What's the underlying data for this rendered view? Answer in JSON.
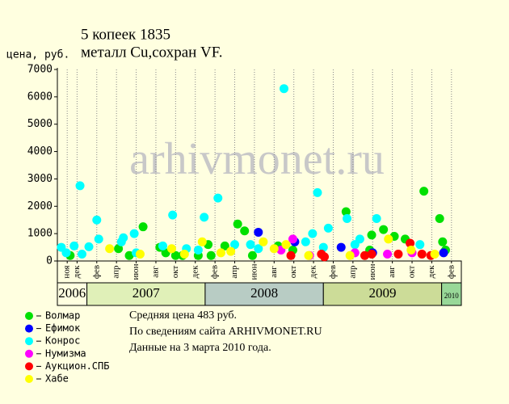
{
  "chart_data": {
    "type": "scatter",
    "title": "5 копеек 1835",
    "subtitle": "металл Cu,сохран VF.",
    "y_label": "цена, руб.",
    "watermark": "arhivmonet.ru",
    "ylim": [
      0,
      7000
    ],
    "yticks": [
      0,
      1000,
      2000,
      3000,
      4000,
      5000,
      6000,
      7000
    ],
    "xlim": [
      0,
      41
    ],
    "categories": [
      null,
      "ноя",
      "дек",
      null,
      "фев",
      null,
      "апр",
      null,
      "июн",
      null,
      "авг",
      null,
      "окт",
      null,
      "дек",
      null,
      "фев",
      null,
      "апр",
      null,
      "июн",
      null,
      "авг",
      null,
      "окт",
      null,
      "дек",
      null,
      "фев",
      null,
      "апр",
      null,
      "июн",
      null,
      "авг",
      null,
      "окт",
      null,
      "дек",
      null,
      "фев"
    ],
    "category_years": [
      "2006",
      "2006",
      "2006",
      "2007",
      "2007",
      "2007",
      "2007",
      "2007",
      "2007",
      "2007",
      "2007",
      "2007",
      "2007",
      "2007",
      "2007",
      "2008",
      "2008",
      "2008",
      "2008",
      "2008",
      "2008",
      "2008",
      "2008",
      "2008",
      "2008",
      "2008",
      "2008",
      "2009",
      "2009",
      "2009",
      "2009",
      "2009",
      "2009",
      "2009",
      "2009",
      "2009",
      "2009",
      "2009",
      "2009",
      "2010",
      "2010"
    ],
    "year_colors": {
      "2006": "#ffffe0",
      "2007": "#e0f0b8",
      "2008": "#b8ccc4",
      "2009": "#ccdc98",
      "2010": "#98d898"
    },
    "series": [
      {
        "name": "Волмар",
        "color": "#00e000",
        "x": [
          1.3,
          6.2,
          7.3,
          8.7,
          10.4,
          11.0,
          12.0,
          12.7,
          14.3,
          15.3,
          15.6,
          17.0,
          18.3,
          19.0,
          19.8,
          22.4,
          23.9,
          29.3,
          31.7,
          31.9,
          33.1,
          34.2,
          35.3,
          37.2,
          38.8,
          39.1,
          39.4
        ],
        "values": [
          200,
          450,
          200,
          1250,
          500,
          300,
          200,
          200,
          200,
          600,
          200,
          550,
          1350,
          1100,
          200,
          550,
          400,
          1800,
          400,
          950,
          1150,
          900,
          800,
          2550,
          1550,
          700,
          400
        ]
      },
      {
        "name": "Ефимок",
        "color": "#0000ff",
        "x": [
          20.4,
          24.1,
          28.8,
          32.0,
          39.2
        ],
        "values": [
          1050,
          700,
          500,
          300,
          300
        ]
      },
      {
        "name": "Конрос",
        "color": "#00ffff",
        "x": [
          0.4,
          0.9,
          1.7,
          2.3,
          2.5,
          3.2,
          4.0,
          4.2,
          6.5,
          6.7,
          7.8,
          8.0,
          10.7,
          11.7,
          13.1,
          14.3,
          14.9,
          16.3,
          18.0,
          19.6,
          20.4,
          23.0,
          25.2,
          25.9,
          26.4,
          27.0,
          27.5,
          29.4,
          30.2,
          30.7,
          32.4,
          36.8
        ],
        "values": [
          500,
          300,
          550,
          2750,
          250,
          520,
          1500,
          800,
          700,
          850,
          1000,
          300,
          550,
          1680,
          450,
          400,
          1600,
          2300,
          600,
          600,
          450,
          6300,
          700,
          1000,
          2500,
          500,
          1200,
          1550,
          600,
          800,
          1550,
          600
        ]
      },
      {
        "name": "Нумизма",
        "color": "#ff00ff",
        "x": [
          22.7,
          23.9,
          25.6,
          30.2,
          33.5,
          36.0
        ],
        "values": [
          400,
          800,
          200,
          300,
          250,
          300
        ]
      },
      {
        "name": "Аукцион.СПБ",
        "color": "#ff0000",
        "x": [
          23.7,
          26.8,
          27.1,
          31.2,
          31.9,
          34.6,
          35.8,
          37.0,
          37.9
        ],
        "values": [
          200,
          250,
          150,
          200,
          250,
          250,
          650,
          250,
          200
        ]
      },
      {
        "name": "Хабе",
        "color": "#ffff00",
        "x": [
          5.3,
          8.4,
          11.6,
          12.9,
          14.7,
          16.6,
          17.6,
          20.9,
          22.0,
          23.2,
          25.5,
          29.7,
          33.6,
          35.9,
          38.3
        ],
        "values": [
          450,
          250,
          450,
          250,
          700,
          300,
          350,
          700,
          450,
          600,
          200,
          200,
          800,
          400,
          250
        ]
      }
    ],
    "notes": [
      "Средняя цена 483 руб.",
      "По  сведениям сайта ARHIVMONET.RU",
      "Данные на 3 марта 2010 года."
    ]
  }
}
